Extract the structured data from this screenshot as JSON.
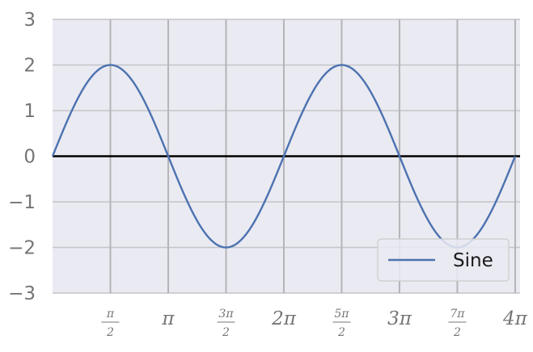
{
  "chart_data": {
    "type": "line",
    "title": "",
    "xlabel": "",
    "ylabel": "",
    "xlim": [
      0,
      12.7
    ],
    "ylim": [
      -3,
      3
    ],
    "x_unit": "radians",
    "x_ticks": [
      {
        "value": 1.5708,
        "label": "π/2",
        "numerator": "π",
        "denominator": "2",
        "is_fraction": true
      },
      {
        "value": 3.1416,
        "label": "π",
        "is_fraction": false
      },
      {
        "value": 4.7124,
        "label": "3π/2",
        "numerator": "3π",
        "denominator": "2",
        "is_fraction": true
      },
      {
        "value": 6.2832,
        "label": "2π",
        "is_fraction": false
      },
      {
        "value": 7.854,
        "label": "5π/2",
        "numerator": "5π",
        "denominator": "2",
        "is_fraction": true
      },
      {
        "value": 9.4248,
        "label": "3π",
        "is_fraction": false
      },
      {
        "value": 10.9956,
        "label": "7π/2",
        "numerator": "7π",
        "denominator": "2",
        "is_fraction": true
      },
      {
        "value": 12.5664,
        "label": "4π",
        "is_fraction": false
      }
    ],
    "y_ticks": [
      {
        "value": 3,
        "label": "3"
      },
      {
        "value": 2,
        "label": "2"
      },
      {
        "value": 1,
        "label": "1"
      },
      {
        "value": 0,
        "label": "0"
      },
      {
        "value": -1,
        "label": "−1"
      },
      {
        "value": -2,
        "label": "−2"
      },
      {
        "value": -3,
        "label": "−3"
      }
    ],
    "grid": true,
    "zero_line": {
      "y": 0,
      "color": "#000000"
    },
    "series": [
      {
        "name": "Sine",
        "color": "#4c72b0",
        "function": "2·sin(x)",
        "amplitude": 2,
        "x_range": [
          0,
          12.5664
        ],
        "points": [
          [
            0,
            0
          ],
          [
            0.7854,
            1.41
          ],
          [
            1.5708,
            2
          ],
          [
            2.3562,
            1.41
          ],
          [
            3.1416,
            0
          ],
          [
            3.927,
            -1.41
          ],
          [
            4.7124,
            -2
          ],
          [
            5.4978,
            -1.41
          ],
          [
            6.2832,
            0
          ],
          [
            7.0686,
            1.41
          ],
          [
            7.854,
            2
          ],
          [
            8.6394,
            1.41
          ],
          [
            9.4248,
            0
          ],
          [
            10.2102,
            -1.41
          ],
          [
            10.9956,
            -2
          ],
          [
            11.781,
            -1.41
          ],
          [
            12.5664,
            0
          ]
        ]
      }
    ],
    "legend": {
      "position": "lower-right",
      "entries": [
        "Sine"
      ]
    },
    "style": {
      "plot_background": "#eaeaf2",
      "grid_color": "#c4c4c8",
      "vgrid_color": "#b4b4b8",
      "tick_label_color": "#757575"
    }
  }
}
